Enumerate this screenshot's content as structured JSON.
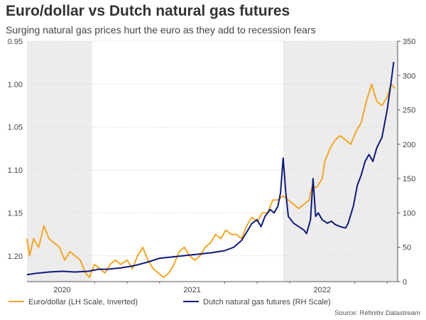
{
  "title": "Euro/dollar vs Dutch natural gas futures",
  "subtitle": "Surging natural gas prices hurt the euro as they add to recession fears",
  "source": "Source: Refinitiv Datastream",
  "chart_data": {
    "type": "line",
    "xlim": [
      2019.73,
      2022.58
    ],
    "x_ticks": [
      {
        "label": "2020",
        "x": 2020.0
      },
      {
        "label": "2021",
        "x": 2021.0
      },
      {
        "label": "2022",
        "x": 2022.0
      }
    ],
    "shaded_regions": [
      [
        2019.73,
        2020.23
      ],
      [
        2021.7,
        2022.58
      ]
    ],
    "y_left": {
      "label": "Euro/dollar (LH Scale, Inverted)",
      "lim": [
        0.95,
        1.23
      ],
      "inverted": true,
      "ticks": [
        "0.95",
        "1.00",
        "1.05",
        "1.10",
        "1.15",
        "1.20"
      ]
    },
    "y_right": {
      "label": "Dutch natural gas futures (RH Scale)",
      "lim": [
        0,
        350
      ],
      "ticks": [
        "0",
        "50",
        "100",
        "150",
        "200",
        "250",
        "300",
        "350"
      ]
    },
    "series": [
      {
        "name": "Euro/dollar (LH Scale, Inverted)",
        "axis": "left",
        "color": "#f5a623",
        "points": [
          [
            2019.73,
            1.18
          ],
          [
            2019.75,
            1.2
          ],
          [
            2019.78,
            1.18
          ],
          [
            2019.82,
            1.19
          ],
          [
            2019.86,
            1.165
          ],
          [
            2019.9,
            1.18
          ],
          [
            2019.94,
            1.185
          ],
          [
            2019.98,
            1.19
          ],
          [
            2020.02,
            1.205
          ],
          [
            2020.06,
            1.195
          ],
          [
            2020.1,
            1.2
          ],
          [
            2020.14,
            1.205
          ],
          [
            2020.18,
            1.22
          ],
          [
            2020.21,
            1.225
          ],
          [
            2020.25,
            1.21
          ],
          [
            2020.29,
            1.215
          ],
          [
            2020.33,
            1.22
          ],
          [
            2020.37,
            1.21
          ],
          [
            2020.41,
            1.205
          ],
          [
            2020.45,
            1.21
          ],
          [
            2020.5,
            1.205
          ],
          [
            2020.54,
            1.215
          ],
          [
            2020.58,
            1.2
          ],
          [
            2020.62,
            1.19
          ],
          [
            2020.66,
            1.205
          ],
          [
            2020.7,
            1.215
          ],
          [
            2020.74,
            1.22
          ],
          [
            2020.78,
            1.225
          ],
          [
            2020.82,
            1.22
          ],
          [
            2020.86,
            1.21
          ],
          [
            2020.9,
            1.195
          ],
          [
            2020.94,
            1.19
          ],
          [
            2020.98,
            1.2
          ],
          [
            2021.02,
            1.205
          ],
          [
            2021.06,
            1.2
          ],
          [
            2021.1,
            1.19
          ],
          [
            2021.14,
            1.185
          ],
          [
            2021.18,
            1.175
          ],
          [
            2021.22,
            1.18
          ],
          [
            2021.26,
            1.17
          ],
          [
            2021.3,
            1.175
          ],
          [
            2021.34,
            1.175
          ],
          [
            2021.38,
            1.18
          ],
          [
            2021.42,
            1.165
          ],
          [
            2021.46,
            1.155
          ],
          [
            2021.5,
            1.16
          ],
          [
            2021.54,
            1.15
          ],
          [
            2021.58,
            1.15
          ],
          [
            2021.62,
            1.135
          ],
          [
            2021.66,
            1.135
          ],
          [
            2021.7,
            1.13
          ],
          [
            2021.74,
            1.135
          ],
          [
            2021.78,
            1.14
          ],
          [
            2021.82,
            1.145
          ],
          [
            2021.86,
            1.14
          ],
          [
            2021.9,
            1.135
          ],
          [
            2021.92,
            1.12
          ],
          [
            2021.96,
            1.12
          ],
          [
            2022.0,
            1.11
          ],
          [
            2022.02,
            1.09
          ],
          [
            2022.06,
            1.075
          ],
          [
            2022.1,
            1.065
          ],
          [
            2022.14,
            1.06
          ],
          [
            2022.18,
            1.065
          ],
          [
            2022.22,
            1.07
          ],
          [
            2022.26,
            1.055
          ],
          [
            2022.3,
            1.045
          ],
          [
            2022.34,
            1.02
          ],
          [
            2022.38,
            1.0
          ],
          [
            2022.42,
            1.02
          ],
          [
            2022.46,
            1.025
          ],
          [
            2022.5,
            1.015
          ],
          [
            2022.53,
            1.0
          ],
          [
            2022.56,
            1.005
          ]
        ]
      },
      {
        "name": "Dutch natural gas futures (RH Scale)",
        "axis": "right",
        "color": "#0c1a7f",
        "points": [
          [
            2019.73,
            10
          ],
          [
            2019.8,
            12
          ],
          [
            2019.9,
            14
          ],
          [
            2020.0,
            15
          ],
          [
            2020.1,
            14
          ],
          [
            2020.2,
            15
          ],
          [
            2020.28,
            18
          ],
          [
            2020.35,
            18
          ],
          [
            2020.45,
            20
          ],
          [
            2020.55,
            23
          ],
          [
            2020.65,
            28
          ],
          [
            2020.75,
            34
          ],
          [
            2020.85,
            36
          ],
          [
            2020.95,
            38
          ],
          [
            2021.05,
            40
          ],
          [
            2021.15,
            42
          ],
          [
            2021.25,
            45
          ],
          [
            2021.32,
            50
          ],
          [
            2021.38,
            60
          ],
          [
            2021.42,
            72
          ],
          [
            2021.46,
            85
          ],
          [
            2021.5,
            90
          ],
          [
            2021.53,
            80
          ],
          [
            2021.56,
            95
          ],
          [
            2021.6,
            105
          ],
          [
            2021.63,
            100
          ],
          [
            2021.66,
            110
          ],
          [
            2021.68,
            130
          ],
          [
            2021.7,
            180
          ],
          [
            2021.72,
            130
          ],
          [
            2021.74,
            95
          ],
          [
            2021.78,
            85
          ],
          [
            2021.82,
            80
          ],
          [
            2021.86,
            75
          ],
          [
            2021.88,
            70
          ],
          [
            2021.91,
            90
          ],
          [
            2021.93,
            150
          ],
          [
            2021.95,
            95
          ],
          [
            2021.97,
            100
          ],
          [
            2022.0,
            90
          ],
          [
            2022.04,
            85
          ],
          [
            2022.07,
            88
          ],
          [
            2022.1,
            83
          ],
          [
            2022.14,
            80
          ],
          [
            2022.18,
            78
          ],
          [
            2022.2,
            85
          ],
          [
            2022.24,
            110
          ],
          [
            2022.27,
            140
          ],
          [
            2022.3,
            155
          ],
          [
            2022.33,
            175
          ],
          [
            2022.36,
            185
          ],
          [
            2022.39,
            175
          ],
          [
            2022.42,
            195
          ],
          [
            2022.46,
            210
          ],
          [
            2022.5,
            250
          ],
          [
            2022.53,
            290
          ],
          [
            2022.55,
            320
          ]
        ]
      }
    ]
  }
}
